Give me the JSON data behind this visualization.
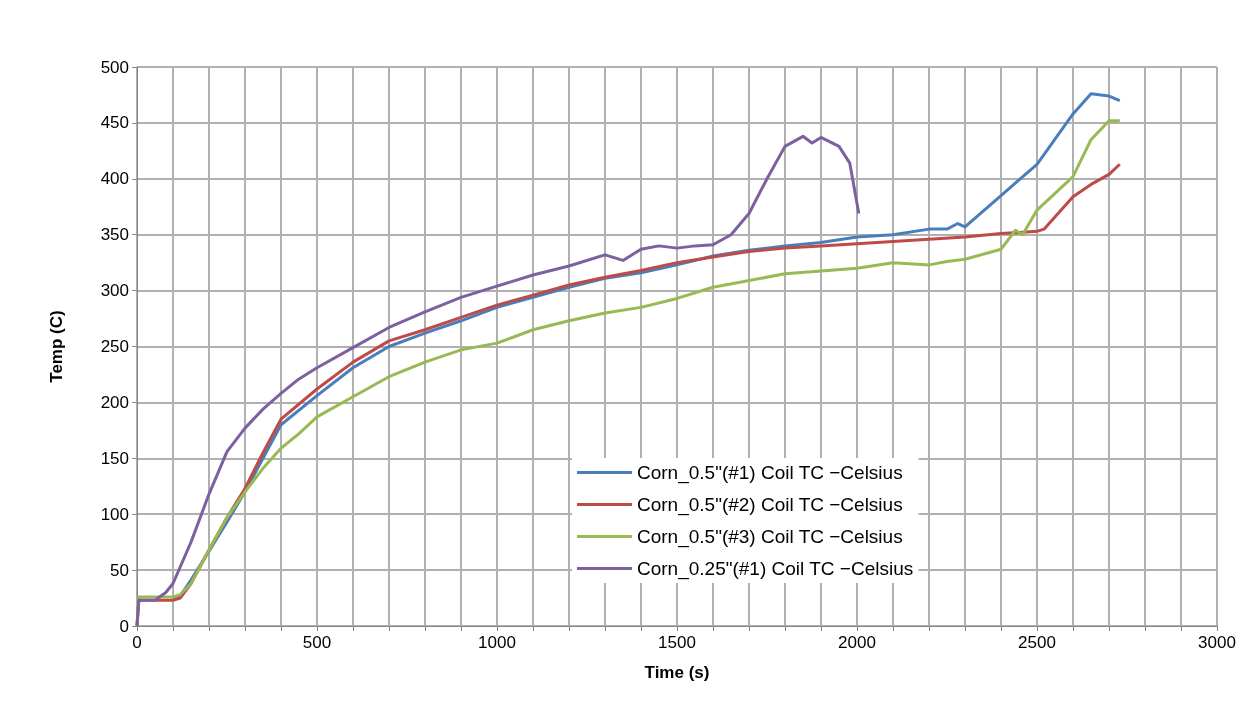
{
  "chart_data": {
    "type": "line",
    "xlabel": "Time (s)",
    "ylabel": "Temp (C)",
    "xlim": [
      0,
      3000
    ],
    "ylim": [
      0,
      500
    ],
    "xticks": [
      0,
      {
        "value": 100,
        "label": null
      },
      {
        "value": 200,
        "label": null
      },
      {
        "value": 300,
        "label": null
      },
      {
        "value": 400,
        "label": null
      },
      500,
      {
        "value": 600,
        "label": null
      },
      {
        "value": 700,
        "label": null
      },
      {
        "value": 800,
        "label": null
      },
      {
        "value": 900,
        "label": null
      },
      1000,
      {
        "value": 1100,
        "label": null
      },
      {
        "value": 1200,
        "label": null
      },
      {
        "value": 1300,
        "label": null
      },
      {
        "value": 1400,
        "label": null
      },
      1500,
      {
        "value": 1600,
        "label": null
      },
      {
        "value": 1700,
        "label": null
      },
      {
        "value": 1800,
        "label": null
      },
      {
        "value": 1900,
        "label": null
      },
      2000,
      {
        "value": 2100,
        "label": null
      },
      {
        "value": 2200,
        "label": null
      },
      {
        "value": 2300,
        "label": null
      },
      {
        "value": 2400,
        "label": null
      },
      2500,
      {
        "value": 2600,
        "label": null
      },
      {
        "value": 2700,
        "label": null
      },
      {
        "value": 2800,
        "label": null
      },
      {
        "value": 2900,
        "label": null
      },
      3000
    ],
    "yticks": [
      0,
      50,
      100,
      150,
      200,
      250,
      300,
      350,
      400,
      450,
      500
    ],
    "grid": true,
    "legend": "bottom",
    "marker": "none",
    "line_style": "solid",
    "series": [
      {
        "name": "Corn_0.5\"(#1) Coil TC −Celsius",
        "color": "#4a7ebb",
        "x": [
          100,
          120,
          150,
          200,
          250,
          300,
          350,
          400,
          500,
          600,
          700,
          800,
          900,
          1000,
          1100,
          1200,
          1300,
          1400,
          1500,
          1600,
          1700,
          1800,
          1900,
          2000,
          2100,
          2200,
          2250,
          2280,
          2300,
          2400,
          2500,
          2600,
          2650,
          2700,
          2730
        ],
        "values": [
          23,
          27,
          41,
          67,
          93,
          120,
          150,
          180,
          206,
          231,
          250,
          262,
          273,
          285,
          294,
          303,
          311,
          316,
          323,
          331,
          336,
          340,
          343,
          348,
          350,
          355,
          355,
          360,
          357,
          385,
          413,
          458,
          476,
          474,
          470
        ]
      },
      {
        "name": "Corn_0.5\"(#2) Coil TC −Celsius",
        "color": "#be4b48",
        "x": [
          0,
          5,
          100,
          120,
          150,
          200,
          250,
          300,
          350,
          400,
          500,
          600,
          700,
          800,
          900,
          1000,
          1100,
          1200,
          1300,
          1400,
          1500,
          1600,
          1700,
          1800,
          1900,
          2000,
          2100,
          2200,
          2300,
          2400,
          2500,
          2520,
          2600,
          2650,
          2700,
          2730
        ],
        "values": [
          0,
          23,
          23,
          25,
          38,
          68,
          97,
          123,
          155,
          185,
          212,
          236,
          255,
          265,
          276,
          287,
          296,
          305,
          312,
          318,
          325,
          330,
          335,
          338,
          340,
          342,
          344,
          346,
          348,
          351,
          353,
          355,
          384,
          395,
          404,
          413
        ]
      },
      {
        "name": "Corn_0.5\"(#3) Coil TC −Celsius",
        "color": "#98b954",
        "x": [
          0,
          5,
          100,
          120,
          150,
          200,
          250,
          300,
          350,
          400,
          450,
          500,
          600,
          700,
          800,
          900,
          1000,
          1100,
          1200,
          1300,
          1400,
          1500,
          1600,
          1800,
          2000,
          2100,
          2200,
          2250,
          2300,
          2400,
          2440,
          2460,
          2500,
          2600,
          2650,
          2700,
          2730
        ],
        "values": [
          0,
          26,
          26,
          28,
          38,
          68,
          97,
          120,
          141,
          159,
          172,
          187,
          205,
          223,
          236,
          247,
          253,
          265,
          273,
          280,
          285,
          293,
          303,
          315,
          320,
          325,
          323,
          326,
          328,
          337,
          354,
          350,
          372,
          402,
          435,
          452,
          452
        ]
      },
      {
        "name": "Corn_0.25\"(#1) Coil TC −Celsius",
        "color": "#7d60a0",
        "x": [
          0,
          5,
          50,
          80,
          100,
          150,
          200,
          250,
          300,
          350,
          400,
          450,
          500,
          600,
          700,
          800,
          900,
          1000,
          1100,
          1200,
          1300,
          1350,
          1400,
          1450,
          1500,
          1550,
          1600,
          1650,
          1700,
          1750,
          1800,
          1850,
          1875,
          1900,
          1950,
          1980,
          2005
        ],
        "values": [
          0,
          23,
          23,
          30,
          38,
          75,
          118,
          156,
          177,
          194,
          208,
          221,
          231,
          249,
          267,
          281,
          294,
          304,
          314,
          322,
          332,
          327,
          337,
          340,
          338,
          340,
          341,
          350,
          369,
          400,
          429,
          438,
          432,
          437,
          429,
          414,
          369
        ]
      }
    ]
  }
}
